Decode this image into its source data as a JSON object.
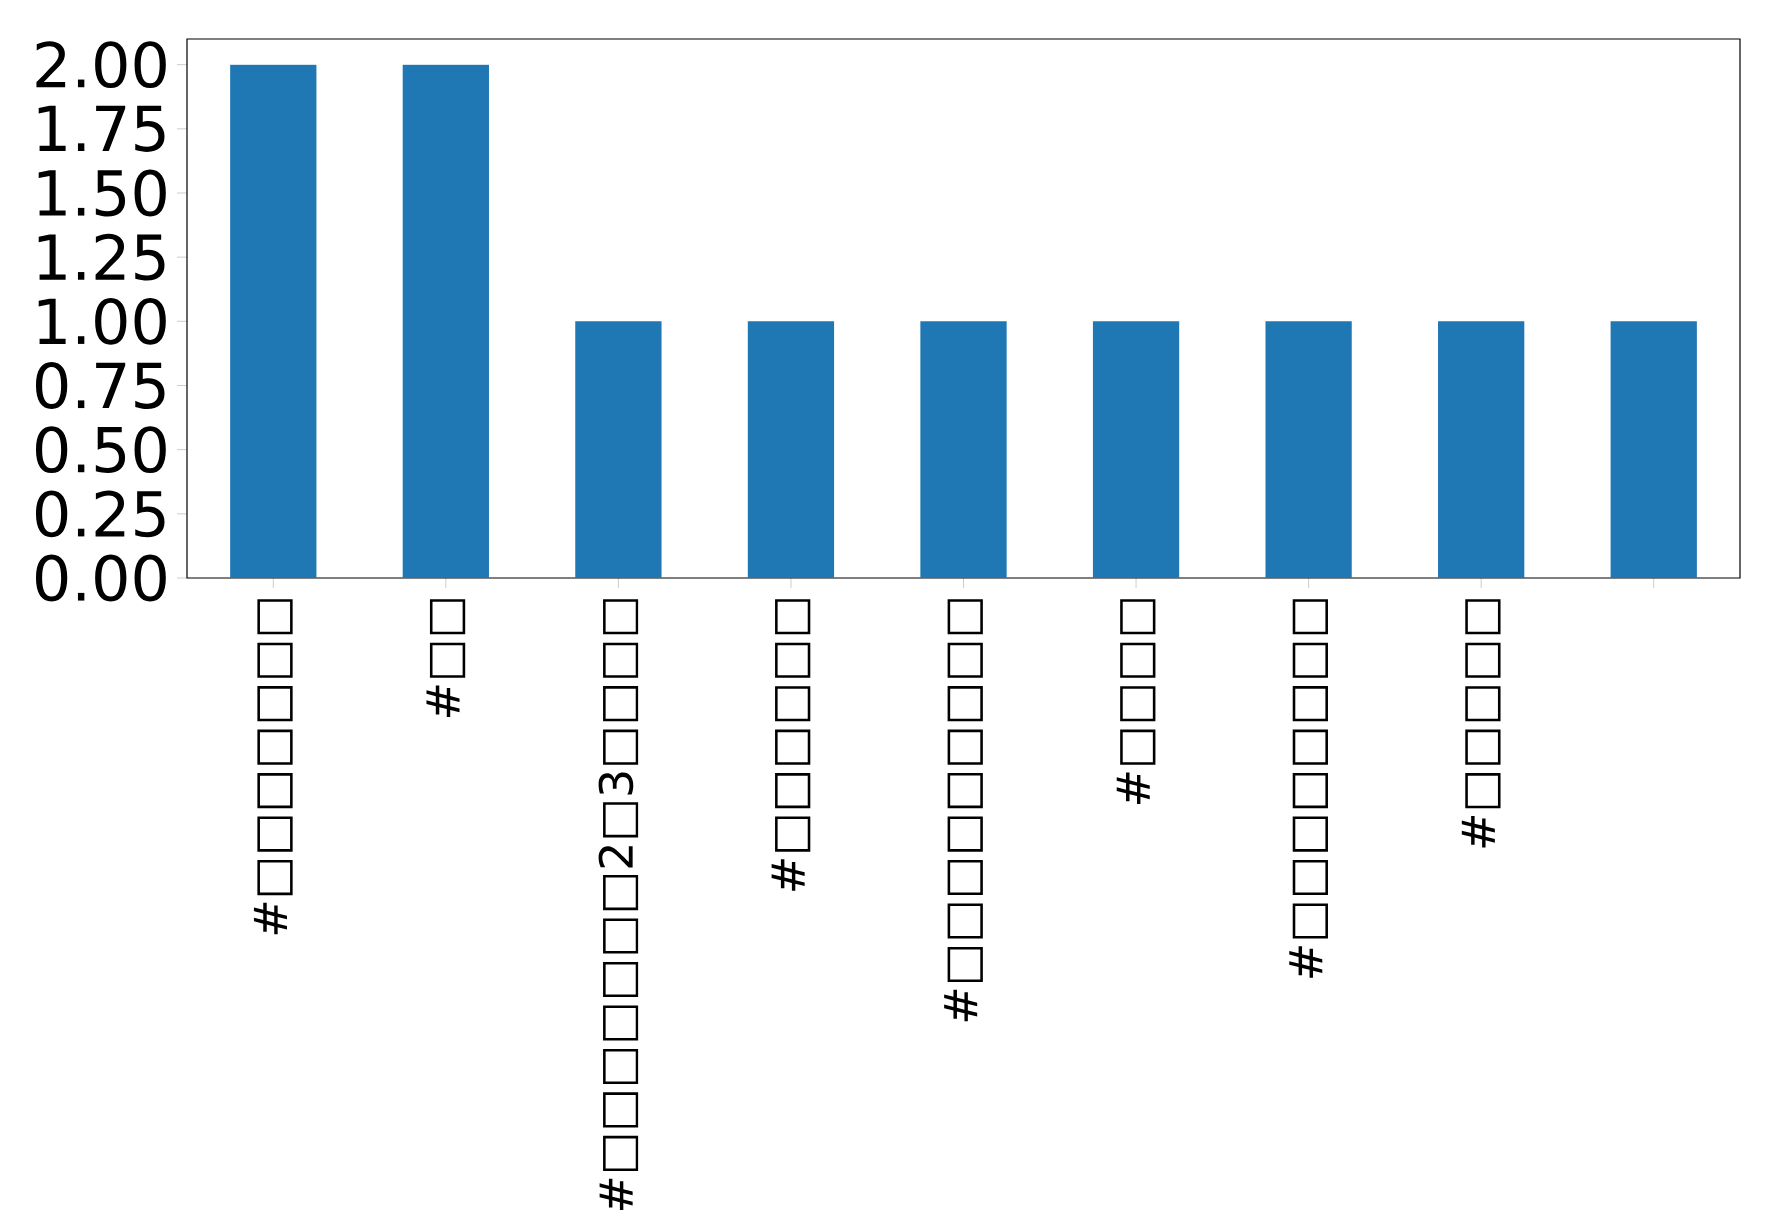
{
  "chart_data": {
    "type": "bar",
    "categories": [
      "#□□□□□□□",
      "#□□",
      "#□□□□□□□2□3□□□□",
      "#□□□□□□",
      "#□□□□□□□□□",
      "#□□□□",
      "#□□□□□□□□",
      "#□□□□□",
      null
    ],
    "values": [
      2,
      2,
      1,
      1,
      1,
      1,
      1,
      1,
      1
    ],
    "color": "#1f77b4",
    "ylim": [
      0,
      2.1
    ],
    "yticks": [
      {
        "value": 0,
        "label": "0.00"
      },
      {
        "value": 0.25,
        "label": "0.25"
      },
      {
        "value": 0.5,
        "label": "0.50"
      },
      {
        "value": 0.75,
        "label": "0.75"
      },
      {
        "value": 1,
        "label": "1.00"
      },
      {
        "value": 1.25,
        "label": "1.25"
      },
      {
        "value": 1.5,
        "label": "1.50"
      },
      {
        "value": 1.75,
        "label": "1.75"
      },
      {
        "value": 2,
        "label": "2.00"
      }
    ],
    "grid": false
  }
}
